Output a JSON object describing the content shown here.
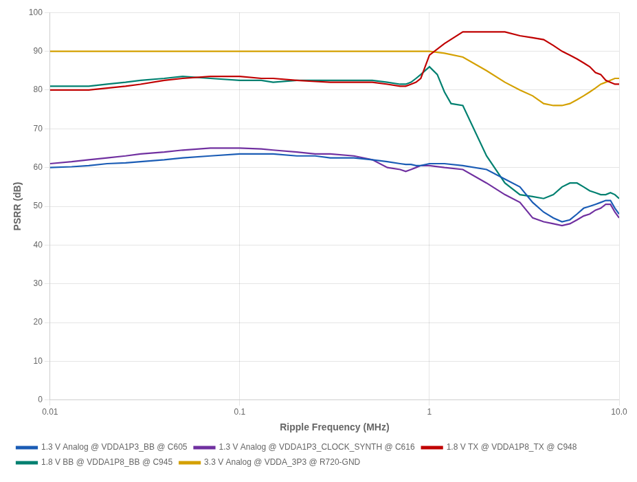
{
  "chart_data": {
    "type": "line",
    "xlabel": "Ripple Frequency (MHz)",
    "ylabel": "PSRR (dB)",
    "log": "x",
    "grid": true,
    "legend": "lower left",
    "xlim": [
      0.01,
      10.0
    ],
    "xticks": [
      0.01,
      0.1,
      1,
      {
        "value": 10,
        "label": "10.0"
      }
    ],
    "ylim": [
      0,
      100
    ],
    "yticks": [
      0,
      10,
      20,
      30,
      40,
      50,
      60,
      70,
      80,
      90,
      100
    ],
    "series": [
      {
        "name": "1.3 V Analog @ VDDA1P3_BB @ C605",
        "color": "#1a5cb5",
        "x": [
          0.01,
          0.013,
          0.016,
          0.02,
          0.025,
          0.03,
          0.04,
          0.05,
          0.07,
          0.1,
          0.13,
          0.15,
          0.2,
          0.25,
          0.3,
          0.4,
          0.5,
          0.6,
          0.7,
          0.75,
          0.8,
          0.85,
          0.9,
          1.0,
          1.2,
          1.5,
          2.0,
          2.5,
          3.0,
          3.5,
          4.0,
          4.5,
          5.0,
          5.5,
          6.0,
          6.5,
          7.0,
          7.5,
          8.0,
          8.5,
          9.0,
          9.5,
          10.0
        ],
        "values": [
          60.0,
          60.2,
          60.5,
          61.0,
          61.2,
          61.5,
          62.0,
          62.5,
          63.0,
          63.5,
          63.5,
          63.5,
          63.0,
          63.0,
          62.5,
          62.5,
          62.0,
          61.5,
          61.0,
          60.8,
          60.8,
          60.5,
          60.5,
          61.0,
          61.0,
          60.5,
          59.5,
          57.0,
          55.0,
          51.0,
          48.5,
          47.0,
          46.0,
          46.5,
          48.0,
          49.5,
          50.0,
          50.5,
          51.0,
          51.5,
          51.5,
          49.5,
          48.0
        ]
      },
      {
        "name": "1.3 V Analog @ VDDA1P3_CLOCK_SYNTH @ C616",
        "color": "#7030a0",
        "x": [
          0.01,
          0.013,
          0.016,
          0.02,
          0.025,
          0.03,
          0.04,
          0.05,
          0.07,
          0.1,
          0.13,
          0.15,
          0.2,
          0.25,
          0.3,
          0.4,
          0.5,
          0.6,
          0.7,
          0.75,
          0.8,
          0.85,
          0.9,
          1.0,
          1.2,
          1.5,
          2.0,
          2.5,
          3.0,
          3.5,
          4.0,
          4.5,
          5.0,
          5.5,
          6.0,
          6.5,
          7.0,
          7.5,
          8.0,
          8.5,
          9.0,
          9.5,
          10.0
        ],
        "values": [
          61.0,
          61.5,
          62.0,
          62.5,
          63.0,
          63.5,
          64.0,
          64.5,
          65.0,
          65.0,
          64.8,
          64.5,
          64.0,
          63.5,
          63.5,
          63.0,
          62.0,
          60.0,
          59.5,
          59.0,
          59.5,
          60.0,
          60.5,
          60.5,
          60.0,
          59.5,
          56.0,
          53.0,
          51.0,
          47.0,
          46.0,
          45.5,
          45.0,
          45.5,
          46.5,
          47.5,
          48.0,
          49.0,
          49.5,
          50.5,
          50.5,
          48.5,
          47.0
        ]
      },
      {
        "name": "1.8 V TX @ VDDA1P8_TX @ C948",
        "color": "#c00000",
        "x": [
          0.01,
          0.013,
          0.016,
          0.02,
          0.025,
          0.03,
          0.04,
          0.05,
          0.07,
          0.1,
          0.13,
          0.15,
          0.2,
          0.25,
          0.3,
          0.4,
          0.5,
          0.6,
          0.7,
          0.75,
          0.8,
          0.85,
          0.9,
          1.0,
          1.2,
          1.5,
          2.0,
          2.5,
          3.0,
          3.5,
          4.0,
          4.5,
          5.0,
          5.5,
          6.0,
          6.5,
          7.0,
          7.5,
          8.0,
          8.5,
          9.0,
          9.5,
          10.0
        ],
        "values": [
          80.0,
          80.0,
          80.0,
          80.5,
          81.0,
          81.5,
          82.5,
          83.0,
          83.5,
          83.5,
          83.0,
          83.0,
          82.5,
          82.2,
          82.0,
          82.0,
          82.0,
          81.5,
          81.0,
          81.0,
          81.5,
          82.0,
          83.0,
          89.0,
          92.0,
          95.0,
          95.0,
          95.0,
          94.0,
          93.5,
          93.0,
          91.5,
          90.0,
          89.0,
          88.0,
          87.0,
          86.0,
          84.5,
          84.0,
          82.5,
          82.0,
          81.5,
          81.5
        ]
      },
      {
        "name": "1.8 V BB @ VDDA1P8_BB @ C945",
        "color": "#008070",
        "x": [
          0.01,
          0.013,
          0.016,
          0.02,
          0.025,
          0.03,
          0.04,
          0.05,
          0.07,
          0.1,
          0.13,
          0.15,
          0.2,
          0.25,
          0.3,
          0.4,
          0.5,
          0.6,
          0.7,
          0.75,
          0.8,
          0.85,
          0.9,
          1.0,
          1.1,
          1.2,
          1.3,
          1.5,
          2.0,
          2.5,
          3.0,
          3.5,
          4.0,
          4.5,
          5.0,
          5.5,
          6.0,
          6.5,
          7.0,
          7.5,
          8.0,
          8.5,
          9.0,
          9.5,
          10.0
        ],
        "values": [
          81.0,
          81.0,
          81.0,
          81.5,
          82.0,
          82.5,
          83.0,
          83.5,
          83.0,
          82.5,
          82.5,
          82.0,
          82.5,
          82.5,
          82.5,
          82.5,
          82.5,
          82.0,
          81.5,
          81.5,
          82.0,
          83.0,
          84.0,
          86.0,
          84.0,
          79.5,
          76.5,
          76.0,
          63.0,
          56.0,
          53.0,
          52.5,
          52.0,
          53.0,
          55.0,
          56.0,
          56.0,
          55.0,
          54.0,
          53.5,
          53.0,
          53.0,
          53.5,
          53.0,
          52.0
        ]
      },
      {
        "name": "3.3 V Analog @ VDDA_3P3 @ R720-GND",
        "color": "#d4a000",
        "x": [
          0.01,
          0.02,
          0.05,
          0.1,
          0.2,
          0.5,
          0.8,
          1.0,
          1.2,
          1.5,
          2.0,
          2.5,
          3.0,
          3.5,
          4.0,
          4.5,
          5.0,
          5.5,
          6.0,
          6.5,
          7.0,
          7.5,
          8.0,
          8.5,
          9.0,
          9.5,
          10.0
        ],
        "values": [
          90.0,
          90.0,
          90.0,
          90.0,
          90.0,
          90.0,
          90.0,
          90.0,
          89.5,
          88.5,
          85.0,
          82.0,
          80.0,
          78.5,
          76.5,
          76.0,
          76.0,
          76.5,
          77.5,
          78.5,
          79.5,
          80.5,
          81.5,
          82.0,
          82.5,
          83.0,
          83.0
        ]
      }
    ]
  }
}
